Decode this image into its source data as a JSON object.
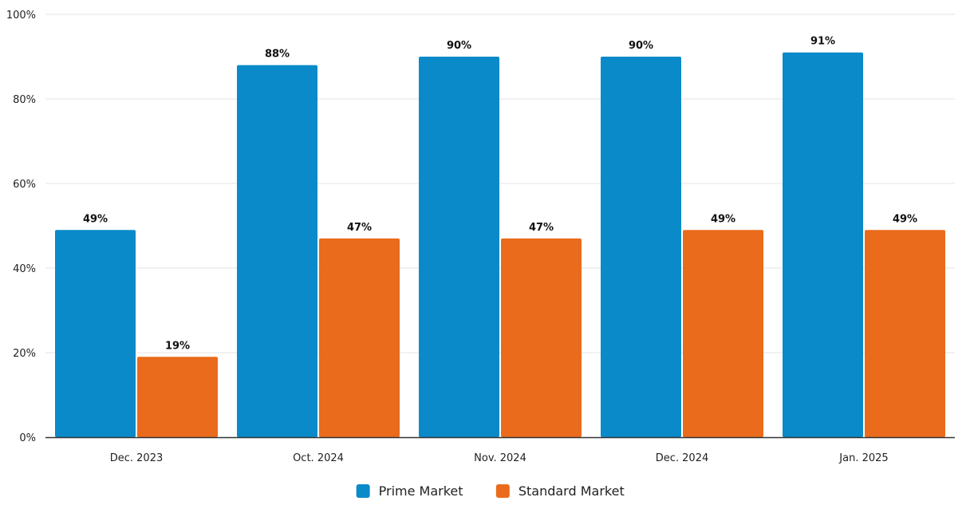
{
  "chart_data": {
    "type": "bar",
    "categories": [
      "Dec. 2023",
      "Oct. 2024",
      "Nov. 2024",
      "Dec. 2024",
      "Jan. 2025"
    ],
    "series": [
      {
        "name": "Prime Market",
        "color": "#0a8ac9",
        "values": [
          49,
          88,
          90,
          90,
          91
        ],
        "labels": [
          "49%",
          "88%",
          "90%",
          "90%",
          "91%"
        ]
      },
      {
        "name": "Standard Market",
        "color": "#ea6b1b",
        "values": [
          19,
          47,
          47,
          49,
          49
        ],
        "labels": [
          "19%",
          "47%",
          "47%",
          "49%",
          "49%"
        ]
      }
    ],
    "ylim": [
      0,
      100
    ],
    "yticks": [
      0,
      20,
      40,
      60,
      80,
      100
    ],
    "ytick_labels": [
      "0%",
      "20%",
      "40%",
      "60%",
      "80%",
      "100%"
    ],
    "grid": true,
    "legend_position": "bottom-center",
    "title": "",
    "xlabel": "",
    "ylabel": ""
  }
}
